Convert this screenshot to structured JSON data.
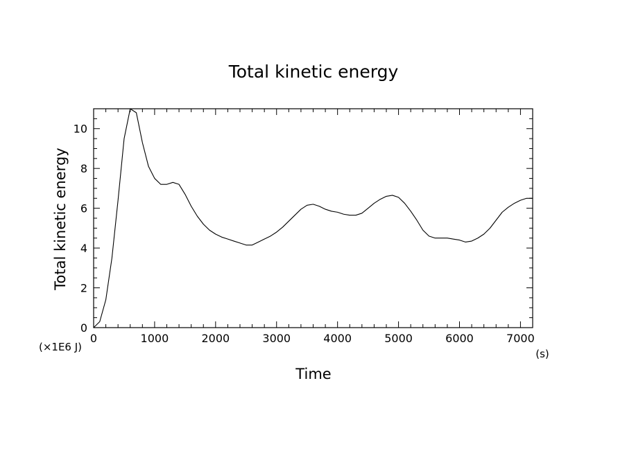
{
  "chart_data": {
    "type": "line",
    "title": "Total kinetic energy",
    "xlabel": "Time",
    "ylabel": "Total kinetic energy",
    "x_unit": "(s)",
    "y_unit": "(×1E6 J)",
    "xlim": [
      0,
      7200
    ],
    "ylim": [
      0,
      11
    ],
    "x_ticks": [
      0,
      1000,
      2000,
      3000,
      4000,
      5000,
      6000,
      7000
    ],
    "x_tick_labels": [
      "0",
      "1000",
      "2000",
      "3000",
      "4000",
      "5000",
      "6000",
      "7000"
    ],
    "y_ticks": [
      0,
      2,
      4,
      6,
      8,
      10
    ],
    "y_tick_labels": [
      "0",
      "2",
      "4",
      "6",
      "8",
      "10"
    ],
    "grid": false,
    "series": [
      {
        "x": [
          0,
          100,
          200,
          300,
          400,
          500,
          600,
          700,
          800,
          900,
          1000,
          1100,
          1200,
          1300,
          1400,
          1500,
          1600,
          1700,
          1800,
          1900,
          2000,
          2100,
          2200,
          2300,
          2400,
          2500,
          2600,
          2700,
          2800,
          2900,
          3000,
          3100,
          3200,
          3300,
          3400,
          3500,
          3600,
          3700,
          3800,
          3900,
          4000,
          4100,
          4200,
          4300,
          4400,
          4500,
          4600,
          4700,
          4800,
          4900,
          5000,
          5100,
          5200,
          5300,
          5400,
          5500,
          5600,
          5700,
          5800,
          5900,
          6000,
          6100,
          6200,
          6300,
          6400,
          6500,
          6600,
          6700,
          6800,
          6900,
          7000,
          7100,
          7200
        ],
        "values": [
          0.0,
          0.3,
          1.4,
          3.5,
          6.4,
          9.5,
          11.0,
          10.8,
          9.3,
          8.1,
          7.5,
          7.2,
          7.2,
          7.3,
          7.2,
          6.7,
          6.1,
          5.6,
          5.2,
          4.9,
          4.7,
          4.55,
          4.45,
          4.35,
          4.25,
          4.15,
          4.15,
          4.3,
          4.45,
          4.6,
          4.8,
          5.05,
          5.35,
          5.65,
          5.95,
          6.15,
          6.2,
          6.1,
          5.95,
          5.85,
          5.8,
          5.7,
          5.65,
          5.65,
          5.75,
          6.0,
          6.25,
          6.45,
          6.6,
          6.65,
          6.55,
          6.25,
          5.85,
          5.4,
          4.9,
          4.6,
          4.5,
          4.5,
          4.5,
          4.45,
          4.4,
          4.3,
          4.35,
          4.5,
          4.7,
          5.0,
          5.4,
          5.8,
          6.05,
          6.25,
          6.4,
          6.5,
          6.5
        ],
        "color": "#000000"
      }
    ]
  }
}
